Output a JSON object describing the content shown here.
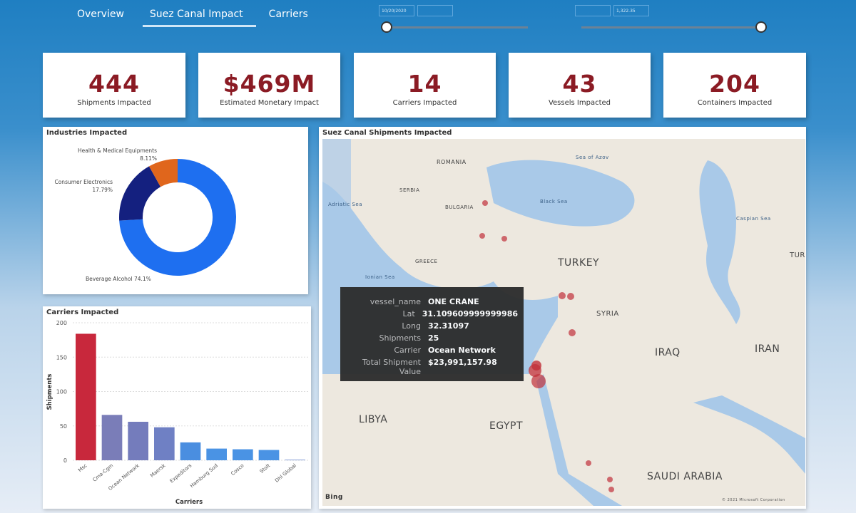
{
  "nav": {
    "tabs": [
      {
        "label": "Overview"
      },
      {
        "label": "Suez Canal Impact",
        "active": true
      },
      {
        "label": "Carriers"
      }
    ]
  },
  "slicers": [
    {
      "start": "10/20/2020",
      "end": ""
    },
    {
      "start": "",
      "end": "1,322.35"
    }
  ],
  "kpis": [
    {
      "value": "444",
      "label": "Shipments Impacted"
    },
    {
      "value": "$469M",
      "label": "Estimated Monetary Impact"
    },
    {
      "value": "14",
      "label": "Carriers Impacted"
    },
    {
      "value": "43",
      "label": "Vessels Impacted"
    },
    {
      "value": "204",
      "label": "Containers Impacted"
    }
  ],
  "colors": {
    "kpi_value": "#8b1b24",
    "accent": "#1f7fc2"
  },
  "chart_data": [
    {
      "type": "pie",
      "title": "Industries Impacted",
      "donut": true,
      "slices": [
        {
          "name": "Beverage Alcohol",
          "value": 74.1,
          "label": "74.1%",
          "color": "#1e6ff0"
        },
        {
          "name": "Consumer Electronics",
          "value": 17.79,
          "label": "17.79%",
          "color": "#14207f"
        },
        {
          "name": "Health & Medical Equipments",
          "value": 8.11,
          "label": "8.11%",
          "color": "#e0661c"
        }
      ]
    },
    {
      "type": "bar",
      "title": "Carriers Impacted",
      "xlabel": "Carriers",
      "ylabel": "Shipments",
      "ylim": [
        0,
        200
      ],
      "yticks": [
        0,
        50,
        100,
        150,
        200
      ],
      "grid": true,
      "categories": [
        "Msc",
        "Cma-Cgm",
        "Ocean Network",
        "Maersk",
        "Expeditors",
        "Hamburg Sud",
        "Cosco",
        "Stolt",
        "Dhl Global"
      ],
      "values": [
        184,
        66,
        56,
        48,
        26,
        17,
        16,
        15,
        1
      ],
      "colors": [
        "#c8283c",
        "#7a7db8",
        "#747cbc",
        "#6f80c4",
        "#4a8ee0",
        "#4a93e4",
        "#4a93e4",
        "#4a93e4",
        "#8aa0d8"
      ]
    }
  ],
  "map": {
    "title": "Suez Canal Shipments Impacted",
    "attribution": "Bing",
    "copyright": "© 2021 Microsoft Corporation",
    "labels": {
      "countries": [
        "ROMANIA",
        "SERBIA",
        "BULGARIA",
        "TURKEY",
        "SYRIA",
        "IRAQ",
        "IRAN",
        "LIBYA",
        "EGYPT",
        "SAUDI ARABIA",
        "GREECE",
        "TUR"
      ],
      "seas": [
        "Black Sea",
        "Caspian Sea",
        "Ionian Sea",
        "Adriatic Sea",
        "Sea of Azov"
      ]
    },
    "tooltip": [
      {
        "key": "vessel_name",
        "value": "ONE CRANE"
      },
      {
        "key": "Lat",
        "value": "31.109609999999986"
      },
      {
        "key": "Long",
        "value": "32.31097"
      },
      {
        "key": "Shipments",
        "value": "25"
      },
      {
        "key": "Carrier",
        "value": "Ocean Network"
      },
      {
        "key": "Total Shipment Value",
        "value": "$23,991,157.98"
      }
    ]
  }
}
